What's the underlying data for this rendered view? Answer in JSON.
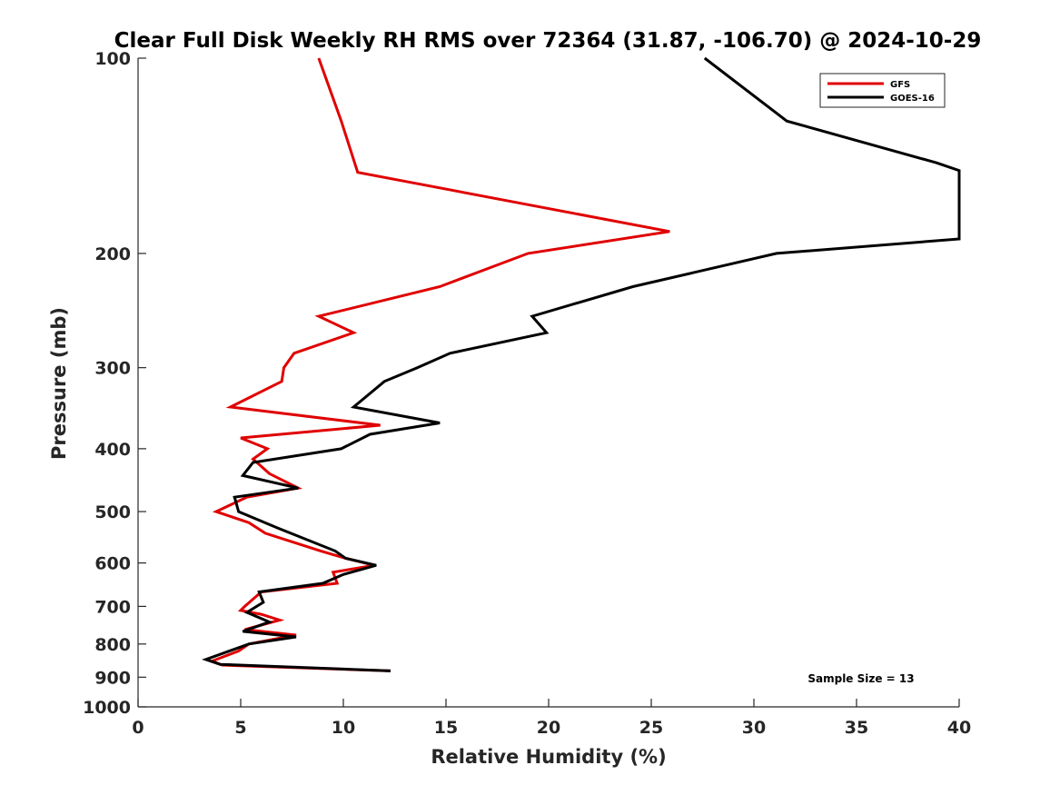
{
  "chart_data": {
    "type": "line",
    "title": "Clear Full Disk Weekly RH RMS over 72364 (31.87, -106.70) @ 2024-10-29",
    "xlabel": "Relative Humidity (%)",
    "ylabel": "Pressure (mb)",
    "xlim": [
      0,
      40
    ],
    "ylim": [
      100,
      1000
    ],
    "yscale": "log",
    "yreversed": true,
    "x_ticks": [
      0,
      5,
      10,
      15,
      20,
      25,
      30,
      35,
      40
    ],
    "y_ticks": [
      100,
      200,
      300,
      400,
      500,
      600,
      700,
      800,
      900,
      1000
    ],
    "grid": false,
    "legend_position": "top-right",
    "annotation": "Sample Size = 13",
    "series": [
      {
        "name": "GFS",
        "color": "#e00000",
        "points": [
          [
            8.8,
            100
          ],
          [
            9.9,
            125
          ],
          [
            10.7,
            150
          ],
          [
            25.9,
            185
          ],
          [
            19.0,
            200
          ],
          [
            14.7,
            225
          ],
          [
            8.8,
            250
          ],
          [
            10.5,
            265
          ],
          [
            7.6,
            285
          ],
          [
            7.1,
            300
          ],
          [
            7.0,
            315
          ],
          [
            4.5,
            345
          ],
          [
            11.8,
            368
          ],
          [
            5.0,
            385
          ],
          [
            6.3,
            400
          ],
          [
            5.6,
            415
          ],
          [
            6.4,
            437
          ],
          [
            7.8,
            460
          ],
          [
            5.3,
            475
          ],
          [
            3.8,
            500
          ],
          [
            5.4,
            520
          ],
          [
            6.2,
            540
          ],
          [
            8.9,
            575
          ],
          [
            10.1,
            590
          ],
          [
            11.5,
            605
          ],
          [
            9.5,
            620
          ],
          [
            9.7,
            645
          ],
          [
            6.0,
            665
          ],
          [
            5.2,
            700
          ],
          [
            5.0,
            710
          ],
          [
            6.0,
            720
          ],
          [
            6.9,
            735
          ],
          [
            5.2,
            760
          ],
          [
            7.7,
            775
          ],
          [
            5.4,
            800
          ],
          [
            4.9,
            820
          ],
          [
            3.6,
            850
          ],
          [
            4.1,
            862
          ],
          [
            12.3,
            880
          ]
        ]
      },
      {
        "name": "GOES-16",
        "color": "#000000",
        "points": [
          [
            27.6,
            100
          ],
          [
            31.6,
            125
          ],
          [
            38.9,
            145
          ],
          [
            40.0,
            149
          ],
          [
            40.0,
            190
          ],
          [
            31.1,
            200
          ],
          [
            24.1,
            225
          ],
          [
            19.2,
            250
          ],
          [
            19.9,
            265
          ],
          [
            15.2,
            285
          ],
          [
            13.6,
            300
          ],
          [
            12.0,
            315
          ],
          [
            10.5,
            345
          ],
          [
            14.7,
            365
          ],
          [
            11.3,
            380
          ],
          [
            9.9,
            400
          ],
          [
            5.6,
            420
          ],
          [
            5.1,
            440
          ],
          [
            7.8,
            460
          ],
          [
            4.7,
            475
          ],
          [
            4.9,
            500
          ],
          [
            6.8,
            530
          ],
          [
            9.6,
            575
          ],
          [
            10.1,
            590
          ],
          [
            11.6,
            605
          ],
          [
            10.0,
            625
          ],
          [
            9.0,
            645
          ],
          [
            5.9,
            665
          ],
          [
            6.1,
            690
          ],
          [
            5.3,
            715
          ],
          [
            6.4,
            740
          ],
          [
            5.1,
            765
          ],
          [
            7.7,
            780
          ],
          [
            5.4,
            800
          ],
          [
            3.3,
            845
          ],
          [
            4.0,
            860
          ],
          [
            12.3,
            880
          ]
        ]
      }
    ]
  }
}
